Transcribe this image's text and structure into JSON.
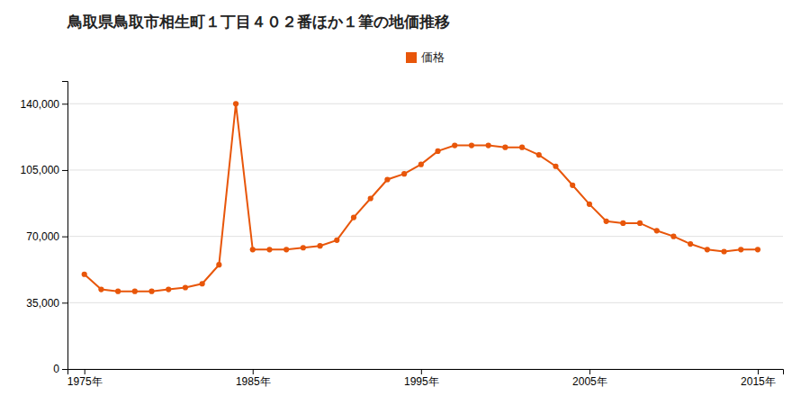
{
  "chart_data": {
    "type": "line",
    "title": "鳥取県鳥取市相生町１丁目４０２番ほか１筆の地価推移",
    "x": [
      1975,
      1976,
      1977,
      1978,
      1979,
      1980,
      1981,
      1982,
      1983,
      1984,
      1985,
      1986,
      1987,
      1988,
      1989,
      1990,
      1991,
      1992,
      1993,
      1994,
      1995,
      1996,
      1997,
      1998,
      1999,
      2000,
      2001,
      2002,
      2003,
      2004,
      2005,
      2006,
      2007,
      2008,
      2009,
      2010,
      2011,
      2012,
      2013,
      2014,
      2015
    ],
    "series": [
      {
        "name": "価格",
        "color": "#e8560a",
        "marker": "circle",
        "values": [
          50000,
          42000,
          41000,
          41000,
          41000,
          42000,
          43000,
          45000,
          55000,
          140000,
          63000,
          63000,
          63000,
          64000,
          65000,
          68000,
          80000,
          90000,
          100000,
          103000,
          108000,
          115000,
          118000,
          118000,
          118000,
          117000,
          117000,
          113000,
          107000,
          97000,
          87000,
          78000,
          77000,
          77000,
          73000,
          70000,
          66000,
          63000,
          62000,
          63000,
          63000
        ]
      }
    ],
    "xlim": [
      1974,
      2016.5
    ],
    "ylim": [
      0,
      152000
    ],
    "xticks": [
      {
        "value": 1975,
        "label": "1975年"
      },
      {
        "value": 1985,
        "label": "1985年"
      },
      {
        "value": 1995,
        "label": "1995年"
      },
      {
        "value": 2005,
        "label": "2005年"
      },
      {
        "value": 2015,
        "label": "2015年"
      }
    ],
    "yticks": [
      0,
      {
        "value": 35000,
        "label": "35,000"
      },
      {
        "value": 70000,
        "label": "70,000"
      },
      {
        "value": 105000,
        "label": "105,000"
      },
      {
        "value": 140000,
        "label": "140,000"
      }
    ],
    "grid": true,
    "legend": "top"
  }
}
